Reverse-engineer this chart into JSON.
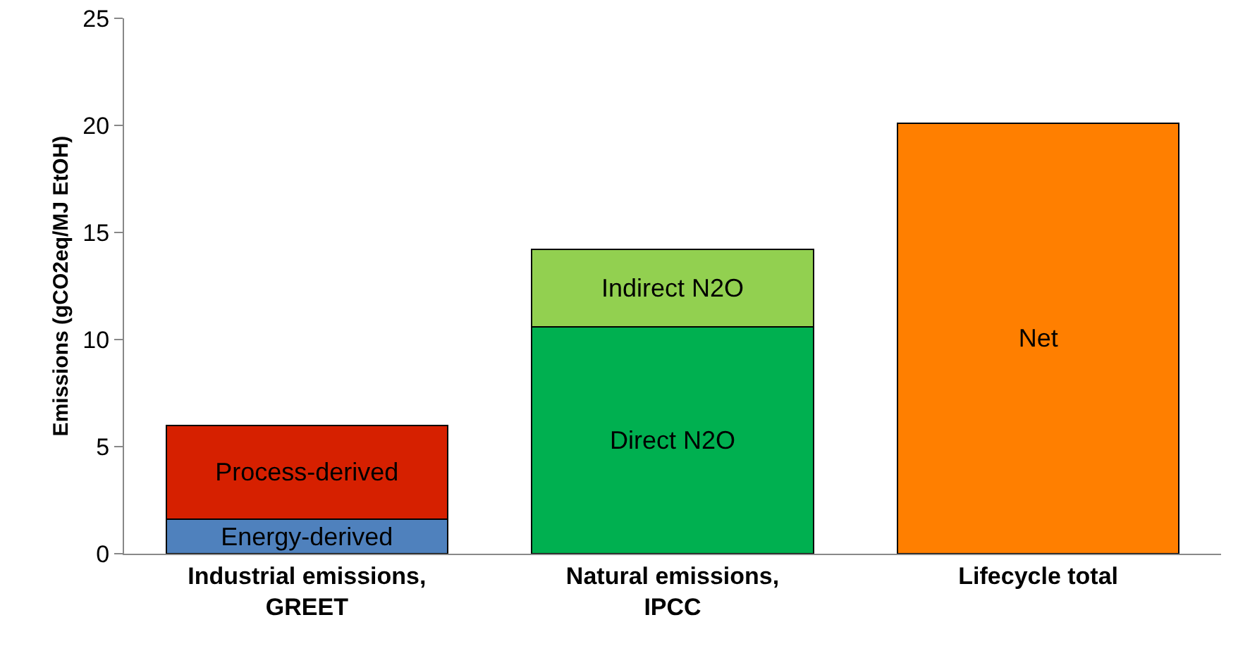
{
  "chart_data": {
    "type": "bar",
    "stacked": true,
    "ylabel": "Emissions (gCO2eq/MJ EtOH)",
    "categories": [
      "Industrial emissions,\nGREET",
      "Natural emissions,\nIPCC",
      "Lifecycle total"
    ],
    "series": [
      {
        "name": "Energy-derived",
        "color": "#4f81bd",
        "values": [
          1.6,
          null,
          null
        ]
      },
      {
        "name": "Process-derived",
        "color": "#d62000",
        "values": [
          4.4,
          null,
          null
        ]
      },
      {
        "name": "Direct N2O",
        "color": "#00b050",
        "values": [
          null,
          10.6,
          null
        ]
      },
      {
        "name": "Indirect N2O",
        "color": "#92d050",
        "values": [
          null,
          3.6,
          null
        ]
      },
      {
        "name": "Net",
        "color": "#ff7f00",
        "values": [
          null,
          null,
          20.1
        ]
      }
    ],
    "ylim": [
      0,
      25
    ],
    "yticks": [
      0,
      5,
      10,
      15,
      20,
      25
    ],
    "grid": false,
    "legend": false
  }
}
